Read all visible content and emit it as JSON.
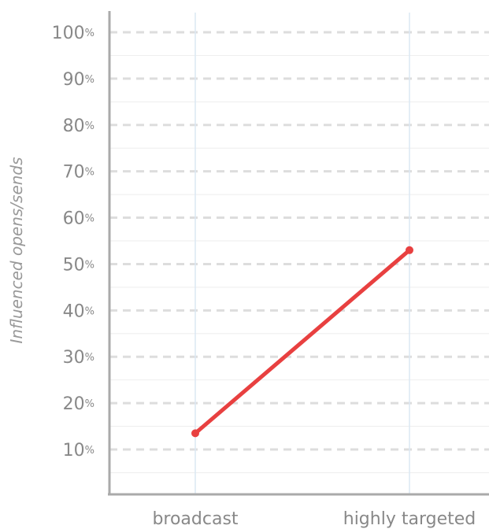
{
  "chart_data": {
    "type": "line",
    "categories": [
      "broadcast",
      "highly targeted"
    ],
    "series": [
      {
        "values": [
          13.5,
          53
        ],
        "color": "#e84040"
      }
    ],
    "ylabel": "Influenced opens/sends",
    "xlabel": "",
    "title": "",
    "ylim": [
      0,
      100
    ],
    "yticks": [
      10,
      20,
      30,
      40,
      50,
      60,
      70,
      80,
      90,
      100
    ],
    "ytick_suffix": "%",
    "grid": true,
    "legend": "none",
    "colors": {
      "axis": "#aaaaaa",
      "major_grid": "#dddddd",
      "minor_grid": "#eeeeee",
      "category_line": "#dbe8f3",
      "text": "#888888"
    }
  }
}
